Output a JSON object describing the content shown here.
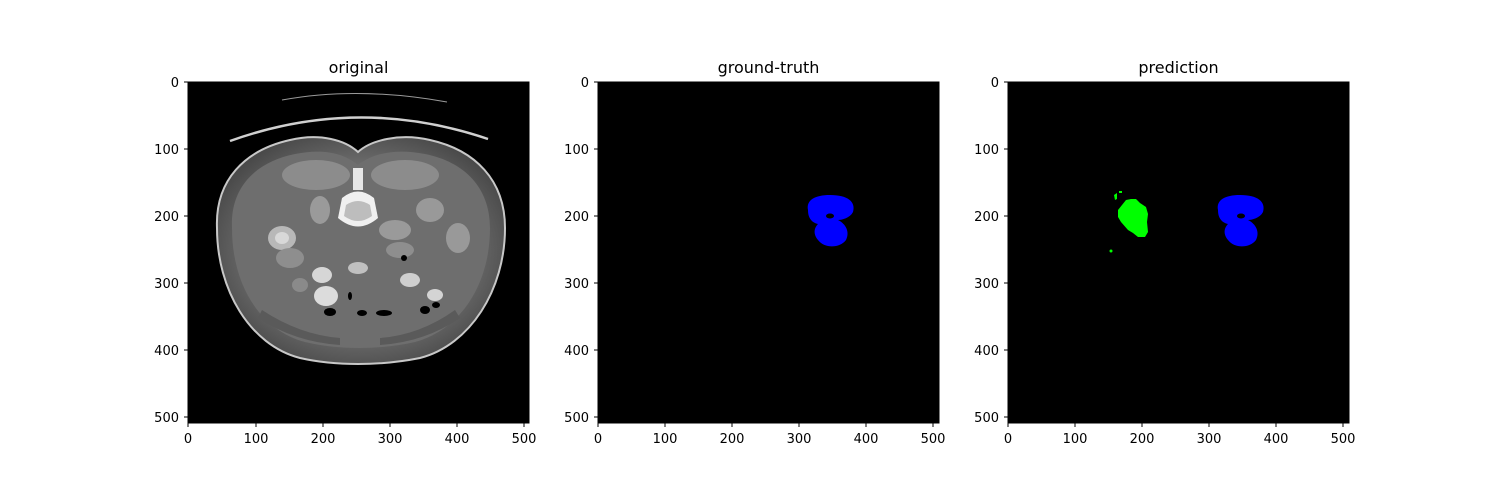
{
  "figure": {
    "panels": [
      {
        "title": "original",
        "x_ticks": [
          "0",
          "100",
          "200",
          "300",
          "400",
          "500"
        ],
        "y_ticks": [
          "0",
          "100",
          "200",
          "300",
          "400",
          "500"
        ]
      },
      {
        "title": "ground-truth",
        "x_ticks": [
          "0",
          "100",
          "200",
          "300",
          "400",
          "500"
        ],
        "y_ticks": [
          "0",
          "100",
          "200",
          "300",
          "400",
          "500"
        ]
      },
      {
        "title": "prediction",
        "x_ticks": [
          "0",
          "100",
          "200",
          "300",
          "400",
          "500"
        ],
        "y_ticks": [
          "0",
          "100",
          "200",
          "300",
          "400",
          "500"
        ]
      }
    ]
  },
  "colors": {
    "background": "#000000",
    "tissue": "#7a7a7a",
    "bone": "#e8e8e8",
    "mask_blue": "#0000ff",
    "mask_green": "#00ff00"
  }
}
